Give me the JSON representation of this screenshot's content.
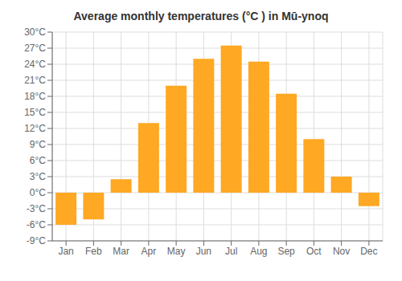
{
  "chart_data": {
    "type": "bar",
    "title": "Average monthly temperatures (°C ) in Mū-ynoq",
    "categories": [
      "Jan",
      "Feb",
      "Mar",
      "Apr",
      "May",
      "Jun",
      "Jul",
      "Aug",
      "Sep",
      "Oct",
      "Nov",
      "Dec"
    ],
    "values": [
      -6.0,
      -5.0,
      2.5,
      13.0,
      20.0,
      25.0,
      27.5,
      24.5,
      18.5,
      10.0,
      3.0,
      -2.5
    ],
    "color": "#FFA823",
    "ylim": [
      -9,
      30
    ],
    "yticks": [
      {
        "value": -9,
        "label": "-9°C"
      },
      {
        "value": -6,
        "label": "-6°C"
      },
      {
        "value": -3,
        "label": "-3°C"
      },
      {
        "value": 0,
        "label": "0°C"
      },
      {
        "value": 3,
        "label": "3°C"
      },
      {
        "value": 6,
        "label": "6°C"
      },
      {
        "value": 9,
        "label": "9°C"
      },
      {
        "value": 12,
        "label": "12°C"
      },
      {
        "value": 15,
        "label": "15°C"
      },
      {
        "value": 18,
        "label": "18°C"
      },
      {
        "value": 21,
        "label": "21°C"
      },
      {
        "value": 24,
        "label": "24°C"
      },
      {
        "value": 27,
        "label": "27°C"
      },
      {
        "value": 30,
        "label": "30°C"
      }
    ],
    "grid": true
  }
}
